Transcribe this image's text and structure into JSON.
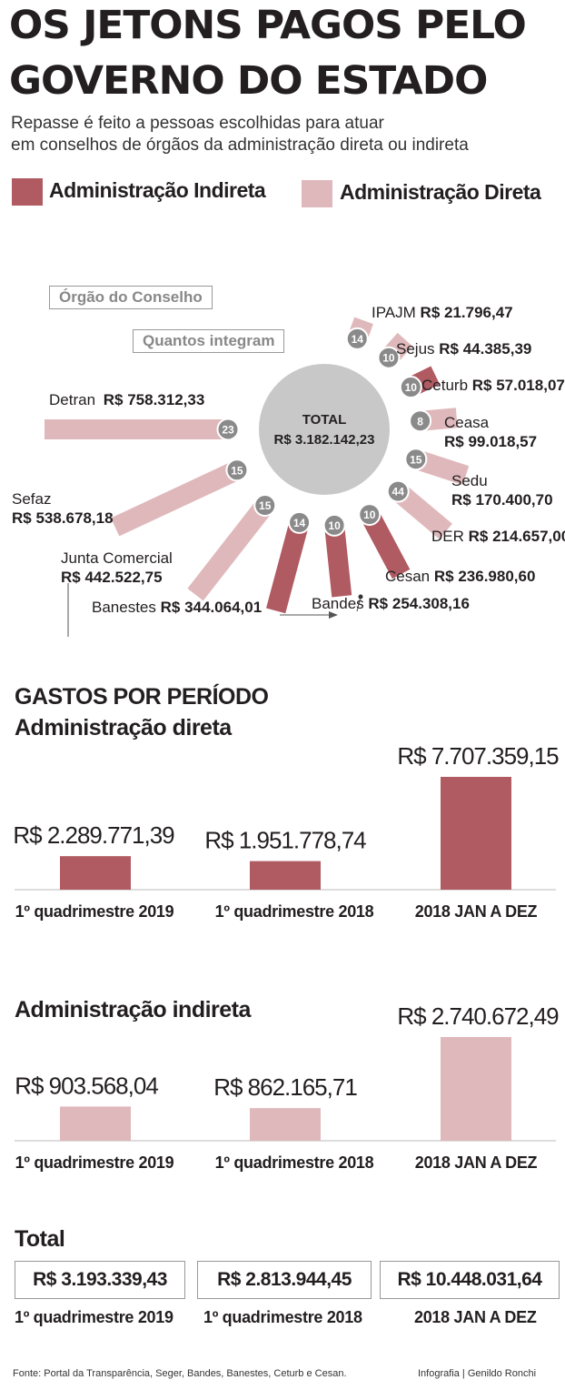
{
  "title_line1": "OS JETONS PAGOS PELO",
  "title_line2": "GOVERNO DO ESTADO",
  "subtitle_line1": "Repasse é feito a pessoas escolhidas para atuar",
  "subtitle_line2": "em conselhos de órgãos da administração direta ou indireta",
  "legend": {
    "indireta": "Administração Indireta",
    "direta": "Administração Direta",
    "indireta_color": "#b05a62",
    "direta_color": "#dfb8bb"
  },
  "callouts": {
    "orgao": "Órgão do Conselho",
    "quantos": "Quantos integram"
  },
  "center": {
    "label": "TOTAL",
    "value": "R$ 3.182.142,23"
  },
  "organs": [
    {
      "name": "IPAJM",
      "value": "R$ 21.796,47",
      "members": "14",
      "admin": "direta"
    },
    {
      "name": "Sejus",
      "value": "R$ 44.385,39",
      "members": "10",
      "admin": "direta"
    },
    {
      "name": "Ceturb",
      "value": "R$ 57.018,07",
      "members": "10",
      "admin": "indireta"
    },
    {
      "name": "Ceasa",
      "value": "R$ 99.018,57",
      "members": "8",
      "admin": "direta"
    },
    {
      "name": "Sedu",
      "value": "R$ 170.400,70",
      "members": "15",
      "admin": "direta"
    },
    {
      "name": "DER",
      "value": "R$ 214.657,00",
      "members": "44",
      "admin": "direta"
    },
    {
      "name": "Cesan",
      "value": "R$ 236.980,60",
      "members": "10",
      "admin": "indireta"
    },
    {
      "name": "Bandes",
      "value": "R$ 254.308,16",
      "members": "10",
      "admin": "indireta"
    },
    {
      "name": "Banestes",
      "value": "R$ 344.064,01",
      "members": "14",
      "admin": "indireta"
    },
    {
      "name": "Junta Comercial",
      "value": "R$ 442.522,75",
      "members": "15",
      "admin": "direta"
    },
    {
      "name": "Sefaz",
      "value": "R$ 538.678,18",
      "members": "15",
      "admin": "direta"
    },
    {
      "name": "Detran",
      "value": "R$ 758.312,33",
      "members": "23",
      "admin": "direta"
    }
  ],
  "gastos": {
    "heading": "GASTOS POR PERÍODO",
    "direta_heading": "Administração direta",
    "indireta_heading": "Administração indireta",
    "total_heading": "Total",
    "categories": [
      "1º quadrimestre 2019",
      "1º quadrimestre 2018",
      "2018 JAN A DEZ"
    ],
    "direta_values": [
      2289771.39,
      1951778.74,
      7707359.15
    ],
    "direta_labels": [
      "R$ 2.289.771,39",
      "R$ 1.951.778,74",
      "R$ 7.707.359,15"
    ],
    "indireta_values": [
      903568.04,
      862165.71,
      2740672.49
    ],
    "indireta_labels": [
      "R$ 903.568,04",
      "R$ 862.165,71",
      "R$ 2.740.672,49"
    ],
    "totals": [
      "R$ 3.193.339,43",
      "R$ 2.813.944,45",
      "R$ 10.448.031,64"
    ]
  },
  "chart_data": [
    {
      "type": "bar",
      "title": "Órgão do Conselho",
      "categories": [
        "IPAJM",
        "Sejus",
        "Ceturb",
        "Ceasa",
        "Sedu",
        "DER",
        "Cesan",
        "Bandes",
        "Banestes",
        "Junta Comercial",
        "Sefaz",
        "Detran"
      ],
      "values": [
        21796.47,
        44385.39,
        57018.07,
        99018.57,
        170400.7,
        214657.0,
        236980.6,
        254308.16,
        344064.01,
        442522.75,
        538678.18,
        758312.33
      ],
      "members": [
        14,
        10,
        10,
        8,
        15,
        44,
        10,
        10,
        14,
        15,
        15,
        23
      ]
    },
    {
      "type": "bar",
      "title": "Administração direta",
      "categories": [
        "1º quadrimestre 2019",
        "1º quadrimestre 2018",
        "2018 JAN A DEZ"
      ],
      "values": [
        2289771.39,
        1951778.74,
        7707359.15
      ]
    },
    {
      "type": "bar",
      "title": "Administração indireta",
      "categories": [
        "1º quadrimestre 2019",
        "1º quadrimestre 2018",
        "2018 JAN A DEZ"
      ],
      "values": [
        903568.04,
        862165.71,
        2740672.49
      ]
    }
  ],
  "footer": {
    "source": "Fonte: Portal da Transparência, Seger, Bandes, Banestes, Ceturb e Cesan.",
    "credit": "Infografia | Genildo Ronchi"
  }
}
